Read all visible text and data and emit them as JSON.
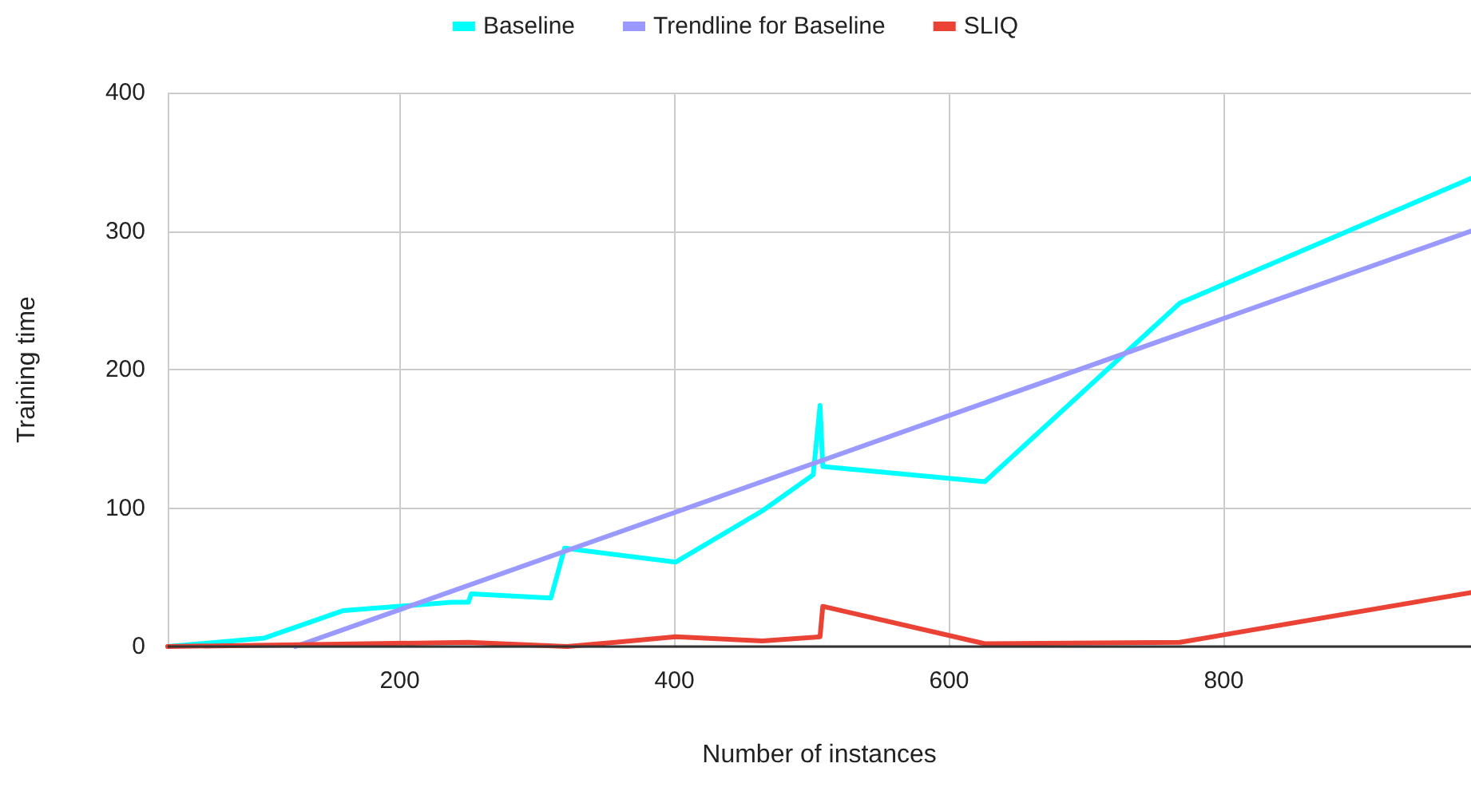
{
  "chart_data": {
    "type": "line",
    "xlabel": "Number of instances",
    "ylabel": "Training time",
    "xlim": [
      31,
      980
    ],
    "xticks": [
      200,
      400,
      600,
      800
    ],
    "ylim": [
      0,
      400
    ],
    "yticks": [
      0,
      100,
      200,
      300,
      400
    ],
    "grid": true,
    "legend": "top",
    "marker": "none",
    "line_style": "solid",
    "series": [
      {
        "name": "Baseline",
        "color": "#00ffff",
        "x": [
          31,
          101,
          159,
          238,
          250,
          252,
          310,
          320,
          401,
          464,
          501,
          506,
          508,
          626,
          768,
          980
        ],
        "values": [
          0,
          6,
          26,
          32,
          32,
          38,
          35,
          71,
          61,
          98,
          124,
          174,
          130,
          119,
          248,
          338
        ]
      },
      {
        "name": "Trendline for Baseline",
        "color": "#9999ff",
        "x": [
          124,
          980
        ],
        "values": [
          0,
          300
        ]
      },
      {
        "name": "SLIQ",
        "color": "#ea4335",
        "x": [
          31,
          250,
          322,
          401,
          464,
          506,
          508,
          626,
          768,
          980
        ],
        "values": [
          0,
          3,
          0,
          7,
          4,
          7,
          29,
          2,
          3,
          39
        ]
      }
    ]
  }
}
